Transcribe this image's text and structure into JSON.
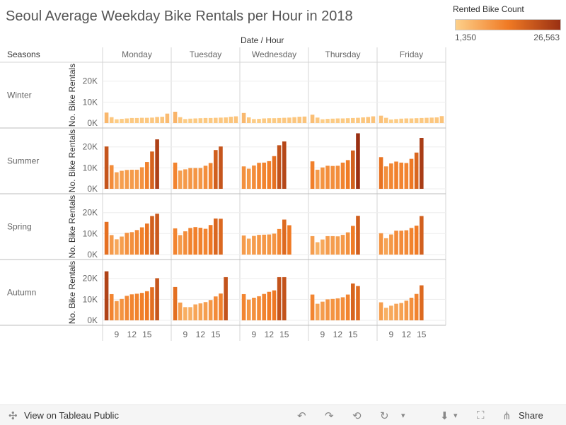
{
  "title": "Seoul Average Weekday Bike Rentals per Hour in 2018",
  "legend": {
    "title": "Rented Bike Count",
    "min_label": "1,350",
    "max_label": "26,563",
    "color_low": "#fdd08a",
    "color_mid": "#f07a24",
    "color_high": "#9a3013"
  },
  "header": {
    "column_title": "Date / Hour",
    "row_title": "Seasons"
  },
  "footer": {
    "view_link": "View on Tableau Public",
    "share_label": "Share"
  },
  "chart_data": {
    "type": "bar",
    "columns": [
      "Monday",
      "Tuesday",
      "Wednesday",
      "Thursday",
      "Friday"
    ],
    "rows": [
      "Winter",
      "Summer",
      "Spring",
      "Autumn"
    ],
    "x": [
      7,
      8,
      9,
      10,
      11,
      12,
      13,
      14,
      15,
      16,
      17,
      18,
      19
    ],
    "xticks": [
      9,
      12,
      15
    ],
    "xlabel": "Hour",
    "ylabel": "No. Bike Rentals",
    "yticks": [
      0,
      10000,
      20000
    ],
    "ytick_labels": [
      "0K",
      "10K",
      "20K"
    ],
    "ylim": [
      0,
      27000
    ],
    "color_range": [
      1350,
      26563
    ],
    "values": {
      "Winter": {
        "Monday": [
          5000,
          2800,
          1800,
          2000,
          2200,
          2400,
          2400,
          2500,
          2500,
          2600,
          2900,
          3000,
          4500
        ],
        "Tuesday": [
          5400,
          2800,
          1900,
          2100,
          2200,
          2300,
          2400,
          2400,
          2500,
          2600,
          2700,
          3000,
          3200
        ],
        "Wednesday": [
          4800,
          2700,
          1900,
          2000,
          2200,
          2300,
          2300,
          2400,
          2500,
          2600,
          2800,
          3000,
          3100
        ],
        "Thursday": [
          4000,
          2600,
          1800,
          2000,
          2100,
          2200,
          2200,
          2300,
          2400,
          2500,
          2700,
          2900,
          3200
        ],
        "Friday": [
          3500,
          2500,
          1700,
          1900,
          2100,
          2200,
          2200,
          2300,
          2400,
          2500,
          2600,
          2700,
          3300
        ]
      },
      "Summer": {
        "Monday": [
          20200,
          11300,
          7900,
          8600,
          9000,
          9100,
          9100,
          10300,
          12800,
          17800,
          23600,
          0,
          0
        ],
        "Tuesday": [
          12500,
          8700,
          9300,
          9900,
          9900,
          9900,
          11000,
          12300,
          18500,
          20200,
          0,
          0,
          0
        ],
        "Wednesday": [
          10700,
          9600,
          11100,
          12400,
          12500,
          13200,
          15600,
          20800,
          22600,
          0,
          0,
          0,
          0
        ],
        "Thursday": [
          13100,
          9100,
          10200,
          11000,
          10900,
          11000,
          12500,
          13700,
          18300,
          26500,
          0,
          0,
          0
        ],
        "Friday": [
          15100,
          10700,
          12100,
          13000,
          12500,
          12300,
          14300,
          17300,
          24300,
          0,
          0,
          0,
          0
        ]
      },
      "Spring": {
        "Monday": [
          15600,
          9300,
          7300,
          8600,
          10400,
          10700,
          11700,
          13000,
          14800,
          18400,
          19500,
          0,
          0
        ],
        "Tuesday": [
          12500,
          9300,
          11100,
          12700,
          13100,
          12800,
          12300,
          14100,
          17200,
          17100,
          0,
          0,
          0
        ],
        "Wednesday": [
          9100,
          7600,
          8900,
          9400,
          9500,
          9600,
          10000,
          12200,
          16700,
          14000,
          0,
          0,
          0
        ],
        "Thursday": [
          8800,
          5900,
          7200,
          8800,
          8800,
          8700,
          9400,
          10600,
          13700,
          18500,
          0,
          0,
          0
        ],
        "Friday": [
          10200,
          7800,
          9600,
          11400,
          11400,
          11600,
          12700,
          13800,
          18400,
          0,
          0,
          0,
          0
        ]
      },
      "Autumn": {
        "Monday": [
          23400,
          12500,
          9200,
          10200,
          11700,
          12400,
          12700,
          13100,
          13900,
          15800,
          20100,
          0,
          0
        ],
        "Tuesday": [
          15900,
          8500,
          6300,
          6300,
          7600,
          8100,
          8700,
          9700,
          11400,
          12800,
          20600,
          0,
          0
        ],
        "Wednesday": [
          12500,
          9900,
          10800,
          11500,
          12600,
          13600,
          14300,
          20600,
          20600,
          0,
          0,
          0,
          0
        ],
        "Thursday": [
          12300,
          7900,
          8900,
          10000,
          10200,
          10500,
          11000,
          12300,
          17600,
          16400,
          0,
          0,
          0
        ],
        "Friday": [
          8600,
          6000,
          7000,
          7900,
          8300,
          9400,
          10800,
          12600,
          16700,
          0,
          0,
          0,
          0
        ]
      }
    },
    "grid": true
  }
}
